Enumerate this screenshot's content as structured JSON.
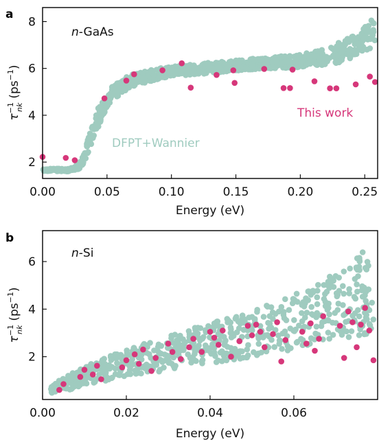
{
  "colors": {
    "dfpt": "#9fcbbf",
    "this_work": "#d6377a",
    "axis": "#000000"
  },
  "chart_data": [
    {
      "type": "scatter",
      "panel": "a",
      "sample": "n-GaAs",
      "sample_prefix": "n",
      "sample_suffix": "-GaAs",
      "xlabel": "Energy (eV)",
      "ylabel_base": "τ",
      "ylabel_sup": "−1",
      "ylabel_sub": "nk",
      "ylabel_unit_open": "(ps",
      "ylabel_unit_sup": "−1",
      "ylabel_unit_close": ")",
      "xlim": [
        0,
        0.26
      ],
      "ylim": [
        1.3,
        8.6
      ],
      "xticks": [
        "0.00",
        "0.05",
        "0.10",
        "0.15",
        "0.20",
        "0.25"
      ],
      "xtick_values": [
        0,
        0.05,
        0.1,
        0.15,
        0.2,
        0.25
      ],
      "yticks": [
        "2",
        "4",
        "6",
        "8"
      ],
      "ytick_values": [
        2,
        4,
        6,
        8
      ],
      "series": [
        {
          "name": "DFPT+Wannier",
          "band": [
            [
              0.0,
              1.62,
              1.75
            ],
            [
              0.01,
              1.6,
              1.72
            ],
            [
              0.02,
              1.6,
              1.72
            ],
            [
              0.025,
              1.65,
              1.8
            ],
            [
              0.03,
              1.75,
              2.1
            ],
            [
              0.033,
              2.0,
              2.6
            ],
            [
              0.036,
              2.5,
              3.2
            ],
            [
              0.04,
              3.1,
              3.9
            ],
            [
              0.044,
              3.6,
              4.4
            ],
            [
              0.048,
              4.1,
              4.8
            ],
            [
              0.052,
              4.45,
              5.1
            ],
            [
              0.056,
              4.7,
              5.35
            ],
            [
              0.06,
              4.9,
              5.5
            ],
            [
              0.065,
              5.05,
              5.65
            ],
            [
              0.07,
              5.2,
              5.75
            ],
            [
              0.08,
              5.4,
              5.9
            ],
            [
              0.09,
              5.55,
              6.0
            ],
            [
              0.1,
              5.65,
              6.1
            ],
            [
              0.12,
              5.75,
              6.2
            ],
            [
              0.14,
              5.85,
              6.3
            ],
            [
              0.16,
              5.95,
              6.4
            ],
            [
              0.18,
              6.0,
              6.5
            ],
            [
              0.2,
              6.05,
              6.6
            ],
            [
              0.21,
              6.1,
              6.7
            ],
            [
              0.22,
              6.15,
              6.85
            ],
            [
              0.23,
              6.25,
              7.1
            ],
            [
              0.24,
              6.45,
              7.4
            ],
            [
              0.25,
              6.7,
              7.8
            ],
            [
              0.258,
              7.0,
              8.25
            ]
          ]
        },
        {
          "name": "This work",
          "points": [
            [
              0.0,
              2.22
            ],
            [
              0.018,
              2.18
            ],
            [
              0.025,
              2.08
            ],
            [
              0.048,
              4.72
            ],
            [
              0.065,
              5.48
            ],
            [
              0.071,
              5.75
            ],
            [
              0.093,
              5.92
            ],
            [
              0.108,
              6.22
            ],
            [
              0.115,
              5.18
            ],
            [
              0.135,
              5.72
            ],
            [
              0.148,
              5.92
            ],
            [
              0.149,
              5.38
            ],
            [
              0.172,
              5.98
            ],
            [
              0.187,
              5.16
            ],
            [
              0.192,
              5.16
            ],
            [
              0.194,
              5.95
            ],
            [
              0.211,
              5.45
            ],
            [
              0.223,
              5.15
            ],
            [
              0.228,
              5.15
            ],
            [
              0.243,
              5.32
            ],
            [
              0.254,
              5.65
            ],
            [
              0.258,
              5.42
            ]
          ]
        }
      ]
    },
    {
      "type": "scatter",
      "panel": "b",
      "sample": "n-Si",
      "sample_prefix": "n",
      "sample_suffix": "-Si",
      "xlabel": "Energy (eV)",
      "ylabel_base": "τ",
      "ylabel_sup": "−1",
      "ylabel_sub": "nk",
      "ylabel_unit_open": "(ps",
      "ylabel_unit_sup": "−1",
      "ylabel_unit_close": ")",
      "xlim": [
        0,
        0.08
      ],
      "ylim": [
        0.2,
        7.3
      ],
      "xticks": [
        "0.00",
        "0.02",
        "0.04",
        "0.06"
      ],
      "xtick_values": [
        0,
        0.02,
        0.04,
        0.06
      ],
      "yticks": [
        "2",
        "4",
        "6"
      ],
      "ytick_values": [
        2,
        4,
        6
      ],
      "series": [
        {
          "name": "DFPT+Wannier",
          "band": [
            [
              0.002,
              0.45,
              0.85
            ],
            [
              0.01,
              0.75,
              1.6
            ],
            [
              0.02,
              1.1,
              2.3
            ],
            [
              0.03,
              1.4,
              2.9
            ],
            [
              0.04,
              1.7,
              3.4
            ],
            [
              0.05,
              2.0,
              3.9
            ],
            [
              0.06,
              2.3,
              4.6
            ],
            [
              0.07,
              2.7,
              5.5
            ],
            [
              0.079,
              3.0,
              6.8
            ]
          ]
        },
        {
          "name": "This work",
          "points": [
            [
              0.004,
              0.6
            ],
            [
              0.005,
              0.85
            ],
            [
              0.009,
              1.15
            ],
            [
              0.01,
              1.45
            ],
            [
              0.012,
              1.25
            ],
            [
              0.013,
              1.62
            ],
            [
              0.014,
              1.05
            ],
            [
              0.019,
              1.55
            ],
            [
              0.02,
              1.85
            ],
            [
              0.022,
              2.1
            ],
            [
              0.023,
              1.7
            ],
            [
              0.024,
              2.3
            ],
            [
              0.026,
              1.4
            ],
            [
              0.027,
              1.95
            ],
            [
              0.03,
              2.55
            ],
            [
              0.031,
              2.2
            ],
            [
              0.033,
              1.9
            ],
            [
              0.035,
              2.4
            ],
            [
              0.036,
              2.75
            ],
            [
              0.038,
              2.2
            ],
            [
              0.04,
              3.05
            ],
            [
              0.041,
              2.8
            ],
            [
              0.042,
              2.5
            ],
            [
              0.043,
              3.1
            ],
            [
              0.045,
              2.0
            ],
            [
              0.047,
              2.65
            ],
            [
              0.049,
              3.3
            ],
            [
              0.05,
              2.9
            ],
            [
              0.051,
              3.35
            ],
            [
              0.052,
              3.05
            ],
            [
              0.053,
              2.4
            ],
            [
              0.055,
              2.95
            ],
            [
              0.056,
              3.45
            ],
            [
              0.057,
              1.8
            ],
            [
              0.058,
              2.7
            ],
            [
              0.062,
              3.05
            ],
            [
              0.063,
              2.55
            ],
            [
              0.064,
              3.4
            ],
            [
              0.065,
              2.25
            ],
            [
              0.066,
              2.75
            ],
            [
              0.067,
              3.7
            ],
            [
              0.071,
              3.3
            ],
            [
              0.072,
              1.95
            ],
            [
              0.073,
              3.9
            ],
            [
              0.074,
              3.45
            ],
            [
              0.075,
              2.4
            ],
            [
              0.076,
              3.35
            ],
            [
              0.077,
              4.05
            ],
            [
              0.078,
              3.1
            ],
            [
              0.079,
              1.85
            ]
          ]
        }
      ]
    }
  ]
}
